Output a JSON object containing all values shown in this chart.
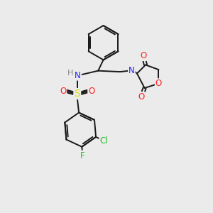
{
  "background_color": "#ebebeb",
  "bond_color": "#1a1a1a",
  "atom_colors": {
    "N": "#2020ff",
    "O": "#ff2020",
    "S": "#e0e000",
    "Cl": "#20c020",
    "F": "#20c020",
    "H": "#808080",
    "C": "#1a1a1a"
  },
  "font_size": 8.5,
  "line_width": 1.4
}
